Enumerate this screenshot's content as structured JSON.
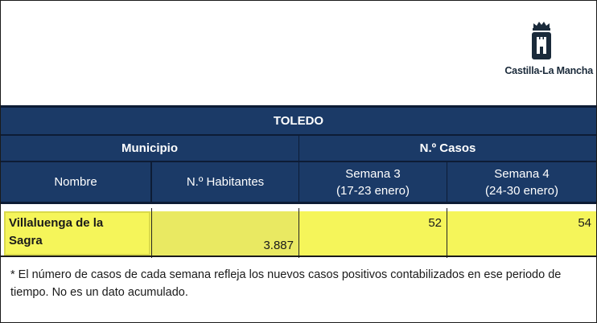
{
  "logo": {
    "text": "Castilla-La Mancha",
    "icon": "castle-crest-icon"
  },
  "table": {
    "province": "TOLEDO",
    "group_municipio": "Municipio",
    "group_casos": "N.º Casos",
    "col_nombre": "Nombre",
    "col_habitantes": "N.º Habitantes",
    "col_semana3_title": "Semana 3",
    "col_semana3_dates": "(17-23 enero)",
    "col_semana4_title": "Semana 4",
    "col_semana4_dates": "(24-30 enero)",
    "rows": [
      {
        "nombre_line1": "Villaluenga de la",
        "nombre_line2": "Sagra",
        "habitantes": "3.887",
        "semana3": "52",
        "semana4": "54"
      }
    ]
  },
  "footnote": "* El número de casos de cada semana refleja los nuevos casos positivos contabilizados en ese periodo de tiempo. No es un dato acumulado.",
  "colors": {
    "header_bg": "#1b3a67",
    "header_bar": "#0d1c35",
    "highlight": "#f5f55a",
    "habitantes_cell": "#e9e962"
  }
}
